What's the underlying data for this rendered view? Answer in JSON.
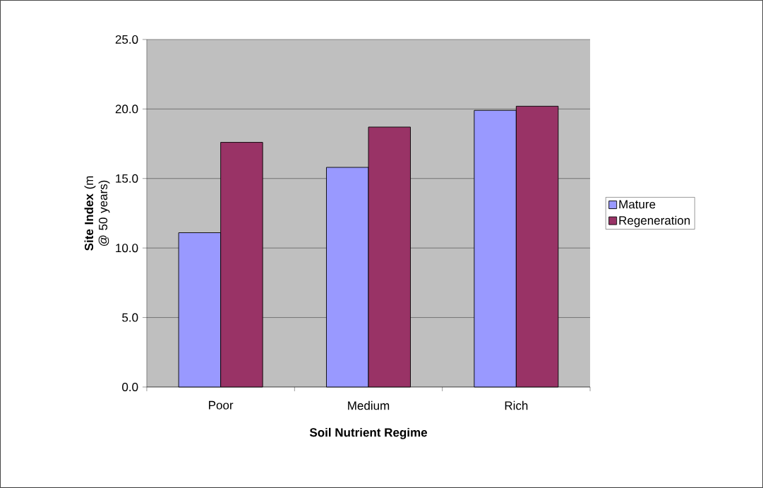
{
  "chart_data": {
    "type": "bar",
    "categories": [
      "Poor",
      "Medium",
      "Rich"
    ],
    "series": [
      {
        "name": "Mature",
        "color": "#9999ff",
        "values": [
          11.1,
          15.8,
          19.9
        ]
      },
      {
        "name": "Regeneration",
        "color": "#993366",
        "values": [
          17.6,
          18.7,
          20.2
        ]
      }
    ],
    "xlabel": "Soil Nutrient Regime",
    "ylabel": "**Site Index** (m @ 50 years)",
    "ylim": [
      0,
      25
    ],
    "yticks": [
      {
        "value": 0,
        "label": "0.0"
      },
      {
        "value": 5,
        "label": "5.0"
      },
      {
        "value": 10,
        "label": "10.0"
      },
      {
        "value": 15,
        "label": "15.0"
      },
      {
        "value": 20,
        "label": "20.0"
      },
      {
        "value": 25,
        "label": "25.0"
      }
    ],
    "grid": "y",
    "legend": "right"
  }
}
